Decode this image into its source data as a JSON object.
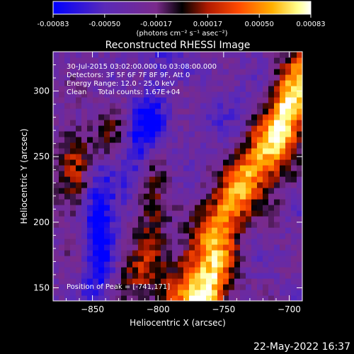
{
  "chart_data": {
    "type": "heatmap",
    "title": "Reconstructed RHESSI Image",
    "xlabel": "Heliocentric X (arcsec)",
    "ylabel": "Heliocentric Y (arcsec)",
    "xlim": [
      -880,
      -690
    ],
    "ylim": [
      140,
      330
    ],
    "xticks": [
      -850,
      -800,
      -750,
      -700
    ],
    "yticks": [
      150,
      200,
      250,
      300
    ],
    "colorbar": {
      "range": [
        -0.00083,
        0.00083
      ],
      "ticks": [
        "-0.00083",
        "-0.00050",
        "-0.00017",
        "0.00017",
        "0.00050",
        "0.00083"
      ],
      "label": "(photons cm⁻² s⁻¹ asec⁻²)",
      "colormap": [
        "#0000ff",
        "#5a2ab8",
        "#7a2a8c",
        "#000000",
        "#b01a00",
        "#ff4a00",
        "#ffb000",
        "#ffff90",
        "#ffffff"
      ]
    },
    "annotations": [
      "30-Jul-2015 03:02:00.000 to 03:08:00.000",
      "Detectors: 3F 5F 6F 7F 8F 9F, Att 0",
      "Energy Range: 12.0 - 25.0 keV",
      "Clean     Total counts: 1.67E+04"
    ],
    "peak_label": "Position of Peak = [-741,171]",
    "peak": [
      -741,
      171
    ],
    "features": [
      {
        "x": -735,
        "y": 230,
        "sx": 11,
        "sy": 70,
        "amp": 0.00095,
        "angle": 0.55
      },
      {
        "x": -760,
        "y": 150,
        "sx": 10,
        "sy": 25,
        "amp": 0.0009,
        "angle": 0.35
      },
      {
        "x": -700,
        "y": 290,
        "sx": 9,
        "sy": 40,
        "amp": 0.0006,
        "angle": 0.15
      },
      {
        "x": -805,
        "y": 210,
        "sx": 9,
        "sy": 25,
        "amp": 0.00045,
        "angle": 0.0
      },
      {
        "x": -815,
        "y": 160,
        "sx": 14,
        "sy": 16,
        "amp": 0.0004,
        "angle": 0.0
      },
      {
        "x": -840,
        "y": 260,
        "sx": 12,
        "sy": 20,
        "amp": 0.00045,
        "angle": 0.0
      },
      {
        "x": -865,
        "y": 235,
        "sx": 10,
        "sy": 28,
        "amp": 0.0004,
        "angle": 0.0
      },
      {
        "x": -790,
        "y": 300,
        "sx": 18,
        "sy": 10,
        "amp": 0.00028,
        "angle": 0.0
      },
      {
        "x": -775,
        "y": 140,
        "sx": 12,
        "sy": 12,
        "amp": 0.0003,
        "angle": 0.0
      },
      {
        "x": -845,
        "y": 195,
        "sx": 8,
        "sy": 50,
        "amp": -0.0006,
        "angle": 0.0
      },
      {
        "x": -810,
        "y": 275,
        "sx": 10,
        "sy": 45,
        "amp": -0.0005,
        "angle": 0.3
      },
      {
        "x": -760,
        "y": 290,
        "sx": 25,
        "sy": 20,
        "amp": -0.00015,
        "angle": 0.0
      }
    ]
  },
  "footer": {
    "timestamp": "22-May-2022 16:37"
  }
}
